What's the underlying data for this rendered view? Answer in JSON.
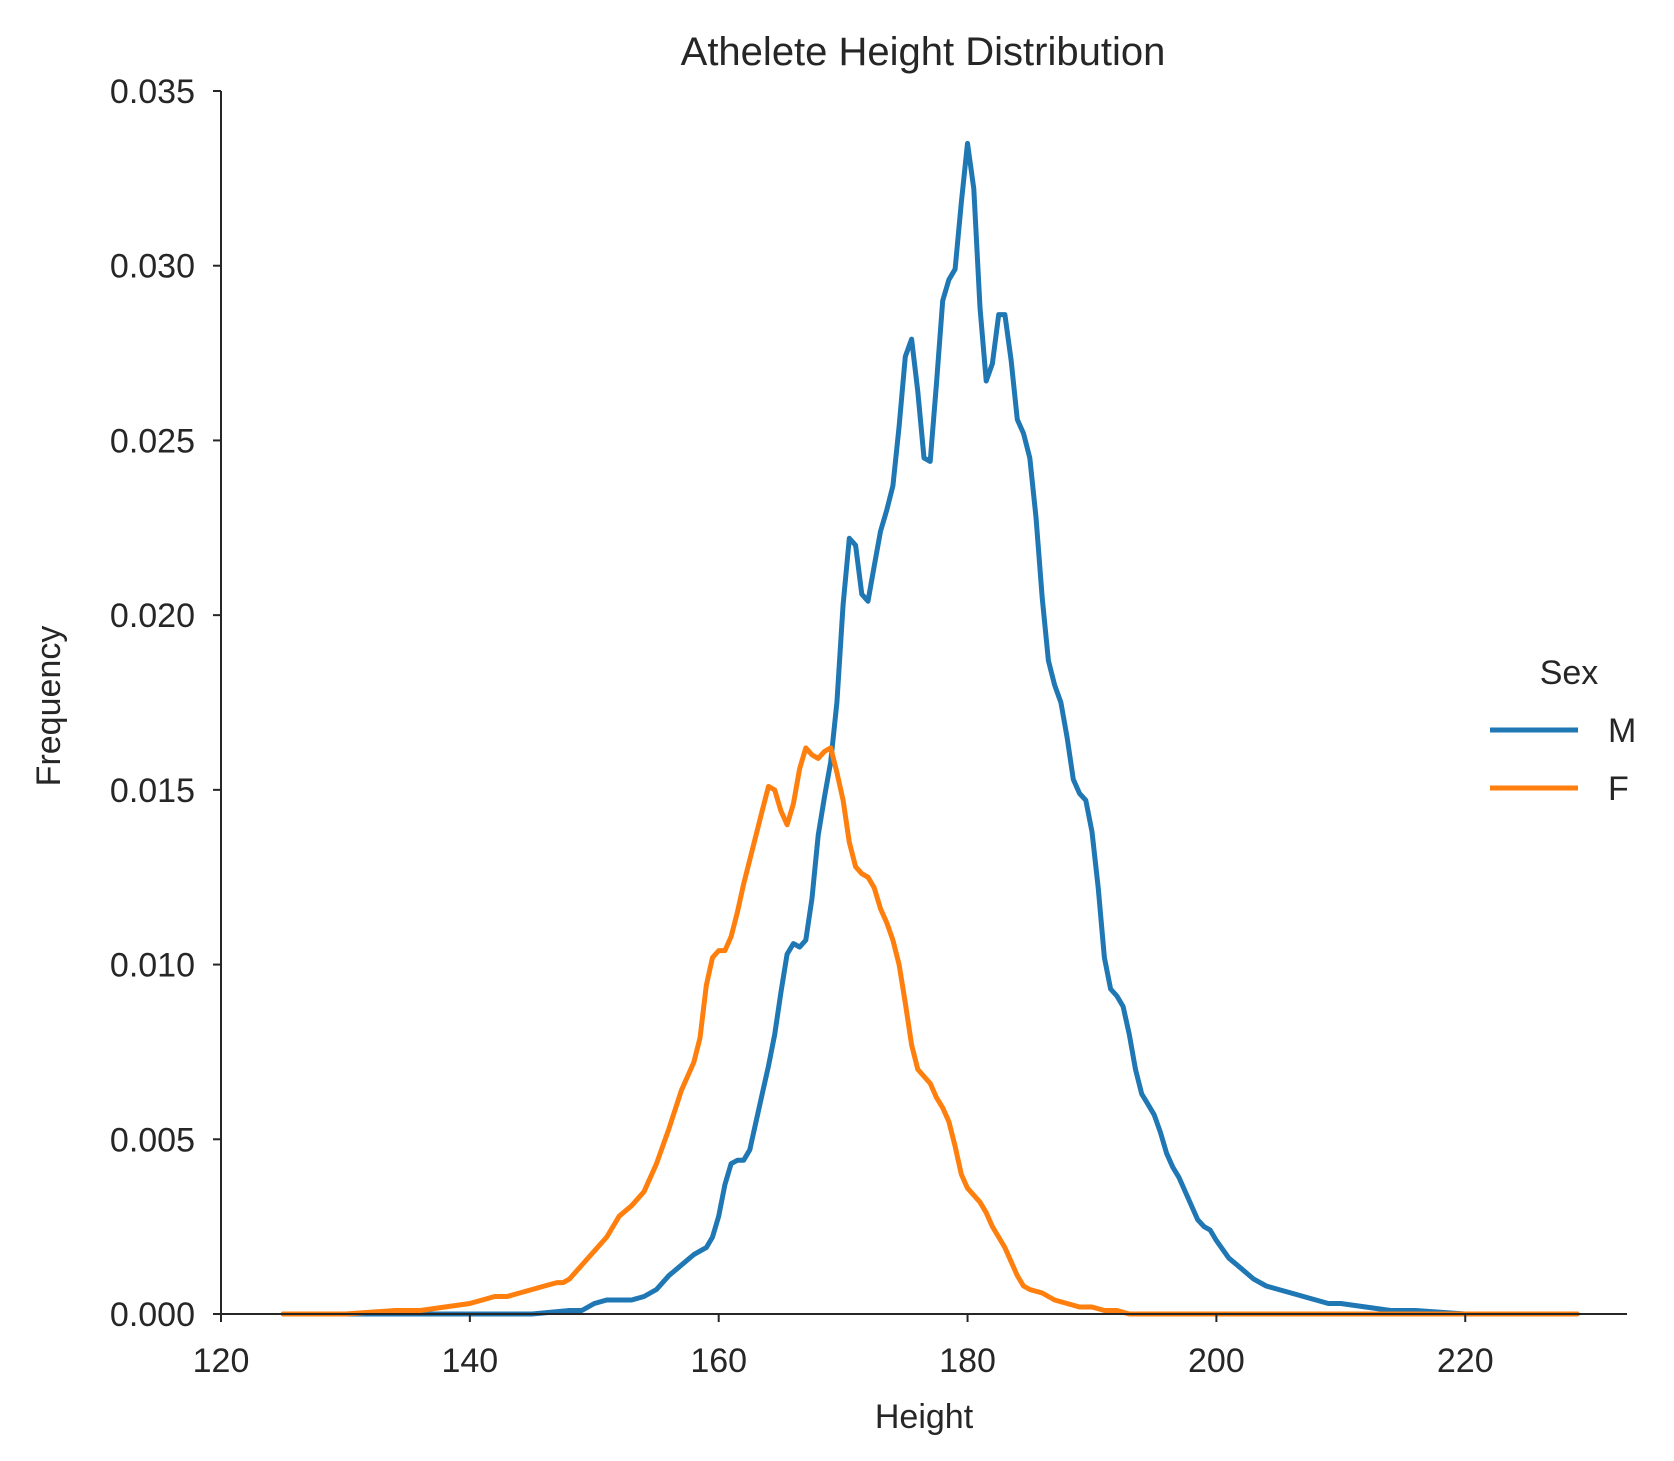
{
  "chart_data": {
    "type": "line",
    "title": "Athelete Height Distribution",
    "xlabel": "Height",
    "ylabel": "Frequency",
    "xlim": [
      120,
      233
    ],
    "ylim": [
      0,
      0.035
    ],
    "xticks": [
      120,
      140,
      160,
      180,
      200,
      220
    ],
    "xtick_labels": [
      "120",
      "140",
      "160",
      "180",
      "200",
      "220"
    ],
    "yticks": [
      0,
      0.005,
      0.01,
      0.015,
      0.02,
      0.025,
      0.03,
      0.035
    ],
    "ytick_labels": [
      "0.000",
      "0.005",
      "0.010",
      "0.015",
      "0.020",
      "0.025",
      "0.030",
      "0.035"
    ],
    "grid": false,
    "legend": {
      "title": "Sex",
      "position": "center-right"
    },
    "series": [
      {
        "name": "M",
        "color": "#1f77b4",
        "x": [
          125,
          130,
          135,
          140,
          145,
          148,
          149,
          150,
          151,
          152,
          153,
          154,
          155,
          156,
          157,
          158,
          158.5,
          159,
          159.5,
          160,
          160.5,
          161,
          161.5,
          162,
          162.5,
          163,
          163.5,
          164,
          164.5,
          165,
          165.5,
          166,
          166.5,
          167,
          167.5,
          168,
          168.5,
          169,
          169.5,
          170,
          170.5,
          171,
          171.5,
          172,
          172.5,
          173,
          173.5,
          174,
          174.5,
          175,
          175.5,
          176,
          176.5,
          177,
          177.5,
          178,
          178.5,
          179,
          179.5,
          180,
          180.5,
          181,
          181.5,
          182,
          182.5,
          183,
          183.5,
          184,
          184.5,
          185,
          185.5,
          186,
          186.5,
          187,
          187.5,
          188,
          188.5,
          189,
          189.5,
          190,
          190.5,
          191,
          191.5,
          192,
          192.5,
          193,
          193.5,
          194,
          194.5,
          195,
          195.5,
          196,
          196.5,
          197,
          197.5,
          198,
          198.5,
          199,
          199.5,
          200,
          201,
          202,
          203,
          204,
          205,
          206,
          207,
          208,
          209,
          210,
          212,
          214,
          216,
          220,
          225,
          229
        ],
        "values": [
          0,
          0,
          0,
          0,
          0,
          0.0001,
          0.0001,
          0.0003,
          0.0004,
          0.0004,
          0.0004,
          0.0005,
          0.0007,
          0.0011,
          0.0014,
          0.0017,
          0.0018,
          0.0019,
          0.0022,
          0.0028,
          0.0037,
          0.0043,
          0.0044,
          0.0044,
          0.0047,
          0.0055,
          0.0063,
          0.0071,
          0.008,
          0.0092,
          0.0103,
          0.0106,
          0.0105,
          0.0107,
          0.0119,
          0.0137,
          0.0148,
          0.0158,
          0.0175,
          0.0203,
          0.0222,
          0.022,
          0.0206,
          0.0204,
          0.0214,
          0.0224,
          0.023,
          0.0237,
          0.0254,
          0.0274,
          0.0279,
          0.0264,
          0.0245,
          0.0244,
          0.0266,
          0.029,
          0.0296,
          0.0299,
          0.0318,
          0.0335,
          0.0322,
          0.0288,
          0.0267,
          0.0272,
          0.0286,
          0.0286,
          0.0273,
          0.0256,
          0.0252,
          0.0245,
          0.0228,
          0.0205,
          0.0187,
          0.018,
          0.0175,
          0.0165,
          0.0153,
          0.0149,
          0.0147,
          0.0138,
          0.0122,
          0.0102,
          0.0093,
          0.0091,
          0.0088,
          0.008,
          0.007,
          0.0063,
          0.006,
          0.0057,
          0.0052,
          0.0046,
          0.0042,
          0.0039,
          0.0035,
          0.0031,
          0.0027,
          0.0025,
          0.0024,
          0.0021,
          0.0016,
          0.0013,
          0.001,
          0.0008,
          0.0007,
          0.0006,
          0.0005,
          0.0004,
          0.0003,
          0.0003,
          0.0002,
          0.0001,
          0.0001,
          0,
          0,
          0
        ]
      },
      {
        "name": "F",
        "color": "#ff7f0e",
        "x": [
          125,
          130,
          134,
          136,
          138,
          140,
          141,
          142,
          143,
          144,
          145,
          146,
          147,
          147.5,
          148,
          149,
          150,
          151,
          152,
          153,
          154,
          155,
          156,
          157,
          158,
          158.5,
          159,
          159.5,
          160,
          160.5,
          161,
          161.5,
          162,
          162.5,
          163,
          163.5,
          164,
          164.5,
          165,
          165.5,
          166,
          166.5,
          167,
          167.5,
          168,
          168.5,
          169,
          169.5,
          170,
          170.5,
          171,
          171.5,
          172,
          172.5,
          173,
          173.5,
          174,
          174.5,
          175,
          175.5,
          176,
          176.5,
          177,
          177.5,
          178,
          178.5,
          179,
          179.5,
          180,
          180.5,
          181,
          181.5,
          182,
          182.5,
          183,
          183.5,
          184,
          184.5,
          185,
          186,
          187,
          188,
          189,
          190,
          191,
          192,
          193,
          194,
          195,
          196,
          197,
          198,
          200,
          202,
          205,
          210,
          215,
          220,
          229
        ],
        "values": [
          0,
          0,
          0.0001,
          0.0001,
          0.0002,
          0.0003,
          0.0004,
          0.0005,
          0.0005,
          0.0006,
          0.0007,
          0.0008,
          0.0009,
          0.0009,
          0.001,
          0.0014,
          0.0018,
          0.0022,
          0.0028,
          0.0031,
          0.0035,
          0.0043,
          0.0053,
          0.0064,
          0.0072,
          0.0079,
          0.0094,
          0.0102,
          0.0104,
          0.0104,
          0.0108,
          0.0115,
          0.0123,
          0.013,
          0.0137,
          0.0144,
          0.0151,
          0.015,
          0.0144,
          0.014,
          0.0146,
          0.0156,
          0.0162,
          0.016,
          0.0159,
          0.0161,
          0.0162,
          0.0155,
          0.0147,
          0.0135,
          0.0128,
          0.0126,
          0.0125,
          0.0122,
          0.0116,
          0.0112,
          0.0107,
          0.01,
          0.0089,
          0.0077,
          0.007,
          0.0068,
          0.0066,
          0.0062,
          0.0059,
          0.0055,
          0.0048,
          0.004,
          0.0036,
          0.0034,
          0.0032,
          0.0029,
          0.0025,
          0.0022,
          0.0019,
          0.0015,
          0.0011,
          0.0008,
          0.0007,
          0.0006,
          0.0004,
          0.0003,
          0.0002,
          0.0002,
          0.0001,
          0.0001,
          0,
          0,
          0,
          0,
          0,
          0,
          0,
          0,
          0,
          0,
          0,
          0,
          0
        ]
      }
    ]
  }
}
